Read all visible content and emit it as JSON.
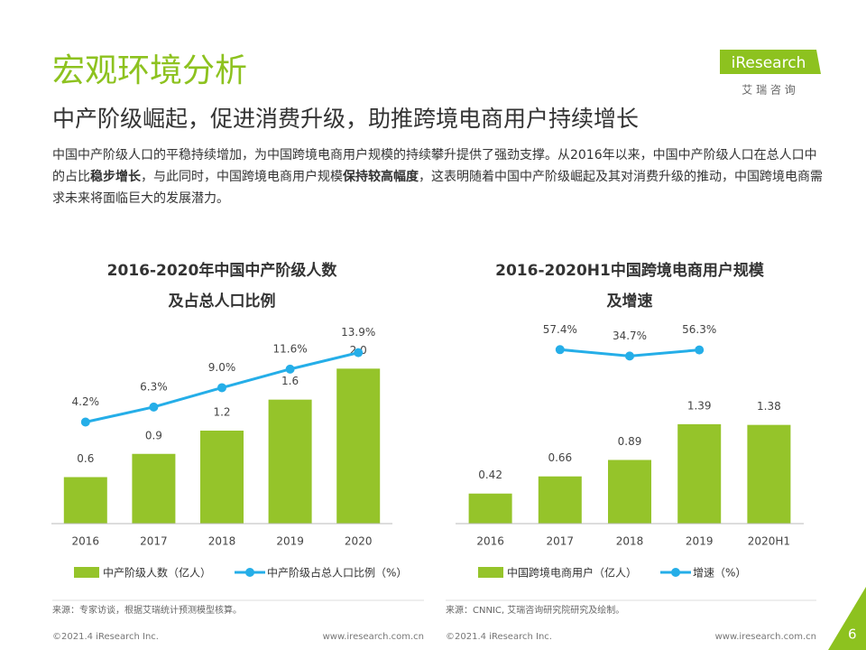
{
  "header": {
    "title": "宏观环境分析",
    "subtitle": "中产阶级崛起，促进消费升级，助推跨境电商用户持续增长",
    "body": [
      "中国中产阶级人口的平稳持续增加，为中国跨境电商用户规模的持续攀升提供了强劲支撑。从2016年以来，中国中产阶级人口在总人口中的占比",
      "稳步增长",
      "，与此同时，中国跨境电商用户规模",
      "保持较高幅度",
      "，这表明随着中国中产阶级崛起及其对消费升级的推动，中国跨境电商需求未来将面临巨大的发展潜力。"
    ]
  },
  "logo": {
    "brand": "iResearch",
    "tagline": "艾 瑞 咨 询"
  },
  "chart_data": [
    {
      "type": "bar-line",
      "title": [
        "2016-2020年中国中产阶级人数",
        "及占总人口比例"
      ],
      "categories": [
        "2016",
        "2017",
        "2018",
        "2019",
        "2020"
      ],
      "ylim": [
        0,
        2.4
      ],
      "y2lim": [
        -10,
        16
      ],
      "series": [
        {
          "name": "中产阶级人数（亿人）",
          "color": "#95c42a",
          "type": "bar",
          "values": [
            0.6,
            0.9,
            1.2,
            1.6,
            2.0
          ],
          "value_labels": [
            "0.6",
            "0.9",
            "1.2",
            "1.6",
            "2.0"
          ]
        },
        {
          "name": "中产阶级占总人口比例（%）",
          "color": "#25aee8",
          "type": "line",
          "axis": "y2",
          "values": [
            4.2,
            6.3,
            9.0,
            11.6,
            13.9
          ],
          "value_labels": [
            "4.2%",
            "6.3%",
            "9.0%",
            "11.6%",
            "13.9%"
          ]
        }
      ]
    },
    {
      "type": "bar-line",
      "title": [
        "2016-2020H1中国跨境电商用户规模",
        "及增速"
      ],
      "categories": [
        "2016",
        "2017",
        "2018",
        "2019",
        "2020H1"
      ],
      "ylim": [
        0,
        2.6
      ],
      "y2lim": [
        -560,
        100
      ],
      "series": [
        {
          "name": "中国跨境电商用户（亿人）",
          "color": "#95c42a",
          "type": "bar",
          "values": [
            0.42,
            0.66,
            0.89,
            1.39,
            1.38
          ]
        },
        {
          "name": "增速（%）",
          "color": "#25aee8",
          "type": "line",
          "axis": "y2",
          "values": [
            null,
            57.4,
            34.7,
            56.3,
            null
          ],
          "value_labels": [
            null,
            "57.4%",
            "34.7%",
            "56.3%",
            null
          ]
        }
      ]
    }
  ],
  "sources": [
    "来源：专家访谈，根据艾瑞统计预测模型核算。",
    "来源：CNNIC, 艾瑞咨询研究院研究及绘制。"
  ],
  "footer": {
    "copyright": "©2021.4 iResearch Inc.",
    "url": "www.iresearch.com.cn",
    "page": "6"
  }
}
